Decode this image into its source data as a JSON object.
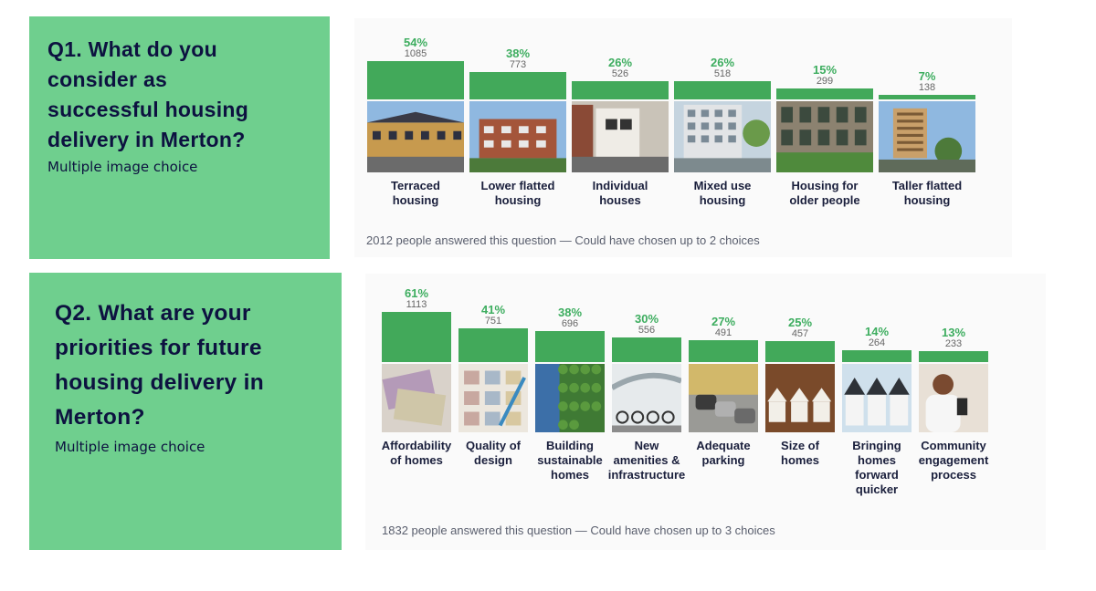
{
  "q1": {
    "title_lines": [
      "Q1. What do you",
      "consider as",
      "successful housing",
      "delivery in Merton?"
    ],
    "subtitle": "Multiple image choice",
    "footnote": "2012 people answered this question — Could have chosen up to 2 choices"
  },
  "q2": {
    "title_lines": [
      "Q2. What are your",
      "priorities for future",
      "housing delivery in",
      "Merton?"
    ],
    "subtitle": "Multiple image choice",
    "footnote": "1832 people answered this question — Could have chosen up to 3 choices"
  },
  "chart_data": [
    {
      "type": "bar",
      "title": "Q1. What do you consider as successful housing delivery in Merton?",
      "categories": [
        [
          "Terraced",
          "housing"
        ],
        [
          "Lower flatted",
          "housing"
        ],
        [
          "Individual",
          "houses"
        ],
        [
          "Mixed use",
          "housing"
        ],
        [
          "Housing for",
          "older people"
        ],
        [
          "Taller flatted",
          "housing"
        ]
      ],
      "values": [
        54,
        38,
        26,
        26,
        15,
        7
      ],
      "value_labels": [
        "54%",
        "38%",
        "26%",
        "26%",
        "15%",
        "7%"
      ],
      "counts": [
        "1085",
        "773",
        "526",
        "518",
        "299",
        "138"
      ],
      "image_icons": [
        "terraced-houses-photo",
        "brick-flats-photo",
        "townhouse-photo",
        "mixed-use-block-photo",
        "older-people-housing-photo",
        "tower-block-photo"
      ],
      "bar_color": "#42a95a",
      "label_color": "#3dad5f"
    },
    {
      "type": "bar",
      "title": "Q2. What are your priorities for future housing delivery in Merton?",
      "categories": [
        [
          "Affordability",
          "of homes"
        ],
        [
          "Quality of",
          "design"
        ],
        [
          "Building",
          "sustainable",
          "homes"
        ],
        [
          "New",
          "amenities &",
          "infrastructure"
        ],
        [
          "Adequate",
          "parking"
        ],
        [
          "Size of",
          "homes"
        ],
        [
          "Bringing",
          "homes",
          "forward",
          "quicker"
        ],
        [
          "Community",
          "engagement",
          "process"
        ]
      ],
      "values": [
        61,
        41,
        38,
        30,
        27,
        25,
        14,
        13
      ],
      "value_labels": [
        "61%",
        "41%",
        "38%",
        "30%",
        "27%",
        "25%",
        "14%",
        "13%"
      ],
      "counts": [
        "1113",
        "751",
        "696",
        "556",
        "491",
        "457",
        "264",
        "233"
      ],
      "image_icons": [
        "banknotes-photo",
        "design-plans-photo",
        "green-wall-photo",
        "bike-shelter-photo",
        "parked-cars-photo",
        "house-models-photo",
        "new-homes-photo",
        "person-phone-photo"
      ],
      "bar_color": "#42a95a",
      "label_color": "#3dad5f"
    }
  ]
}
